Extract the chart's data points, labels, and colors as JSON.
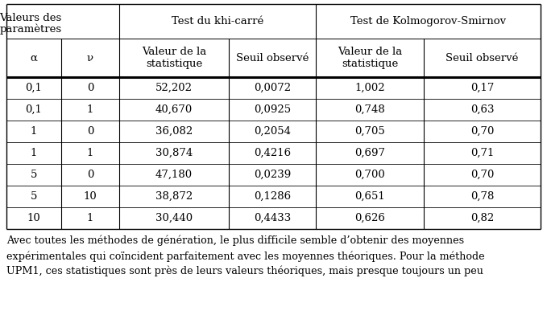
{
  "header_row1_col0": "Valeurs des\nparamètres",
  "header_row1_col1": "Test du khi-carré",
  "header_row1_col2": "Test de Kolmogorov-Smirnov",
  "header_row2": [
    "α",
    "ν",
    "Valeur de la\nstatistique",
    "Seuil observé",
    "Valeur de la\nstatistique",
    "Seuil observé"
  ],
  "data_rows": [
    [
      "0,1",
      "0",
      "52,202",
      "0,0072",
      "1,002",
      "0,17"
    ],
    [
      "0,1",
      "1",
      "40,670",
      "0,0925",
      "0,748",
      "0,63"
    ],
    [
      "1",
      "0",
      "36,082",
      "0,2054",
      "0,705",
      "0,70"
    ],
    [
      "1",
      "1",
      "30,874",
      "0,4216",
      "0,697",
      "0,71"
    ],
    [
      "5",
      "0",
      "47,180",
      "0,0239",
      "0,700",
      "0,70"
    ],
    [
      "5",
      "10",
      "38,872",
      "0,1286",
      "0,651",
      "0,78"
    ],
    [
      "10",
      "1",
      "30,440",
      "0,4433",
      "0,626",
      "0,82"
    ]
  ],
  "footer_lines": [
    "Avec toutes les méthodes de génération, le plus difficile semble d’obtenir des moyennes",
    "expérimentales qui coïncident parfaitement avec les moyennes théoriques. Pour la méthode",
    "UPM1, ces statistiques sont près de leurs valeurs théoriques, mais presque toujours un peu"
  ],
  "bg_color": "#ffffff",
  "text_color": "#000000",
  "data_font_size": 9.5,
  "header_font_size": 9.5,
  "footer_font_size": 9.2
}
